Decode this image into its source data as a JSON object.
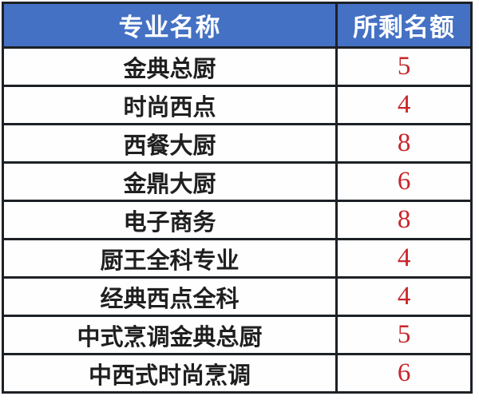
{
  "chart_data": {
    "type": "table",
    "columns": [
      "专业名称",
      "所剩名额"
    ],
    "rows": [
      [
        "金典总厨",
        "5"
      ],
      [
        "时尚西点",
        "4"
      ],
      [
        "西餐大厨",
        "8"
      ],
      [
        "金鼎大厨",
        "6"
      ],
      [
        "电子商务",
        "8"
      ],
      [
        "厨王全科专业",
        "4"
      ],
      [
        "经典西点全科",
        "4"
      ],
      [
        "中式烹调金典总厨",
        "5"
      ],
      [
        "中西式时尚烹调",
        "6"
      ]
    ],
    "title": "",
    "layout_hints": {
      "header_position": "top",
      "grid": "on",
      "name_column_align": "center",
      "quota_column_align": "center"
    }
  },
  "colors": {
    "header_bg": "#4471c4",
    "header_text": "#ffffff",
    "border": "#1d2126",
    "major_text": "#1f1f1f",
    "quota_text": "#c8252b",
    "page_bg": "#ffffff"
  }
}
